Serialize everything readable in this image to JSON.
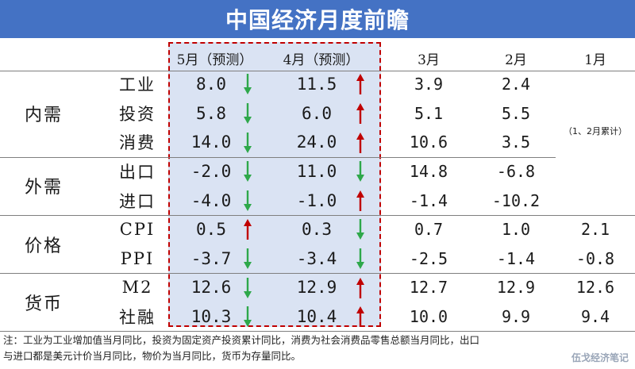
{
  "title": "中国经济月度前瞻",
  "columns": [
    "5月（预测）",
    "4月（预测）",
    "3月",
    "2月",
    "1月"
  ],
  "jan_note": "（1、2月累计）",
  "groups": [
    {
      "name": "内需",
      "rows": [
        {
          "label": "工业",
          "may": "8.0",
          "may_dir": "down",
          "apr": "11.5",
          "apr_dir": "up",
          "mar": "3.9",
          "feb": "2.4",
          "jan": ""
        },
        {
          "label": "投资",
          "may": "5.8",
          "may_dir": "down",
          "apr": "6.0",
          "apr_dir": "up",
          "mar": "5.1",
          "feb": "5.5",
          "jan": ""
        },
        {
          "label": "消费",
          "may": "14.0",
          "may_dir": "down",
          "apr": "24.0",
          "apr_dir": "up",
          "mar": "10.6",
          "feb": "3.5",
          "jan": ""
        }
      ]
    },
    {
      "name": "外需",
      "rows": [
        {
          "label": "出口",
          "may": "-2.0",
          "may_dir": "down",
          "apr": "11.0",
          "apr_dir": "down",
          "mar": "14.8",
          "feb": "-6.8",
          "jan": ""
        },
        {
          "label": "进口",
          "may": "-4.0",
          "may_dir": "down",
          "apr": "-1.0",
          "apr_dir": "up",
          "mar": "-1.4",
          "feb": "-10.2",
          "jan": ""
        }
      ]
    },
    {
      "name": "价格",
      "rows": [
        {
          "label": "CPI",
          "may": "0.5",
          "may_dir": "up",
          "apr": "0.3",
          "apr_dir": "down",
          "mar": "0.7",
          "feb": "1.0",
          "jan": "2.1"
        },
        {
          "label": "PPI",
          "may": "-3.7",
          "may_dir": "down",
          "apr": "-3.4",
          "apr_dir": "down",
          "mar": "-2.5",
          "feb": "-1.4",
          "jan": "-0.8"
        }
      ]
    },
    {
      "name": "货币",
      "rows": [
        {
          "label": "M2",
          "may": "12.6",
          "may_dir": "down",
          "apr": "12.9",
          "apr_dir": "up",
          "mar": "12.7",
          "feb": "12.9",
          "jan": "12.6"
        },
        {
          "label": "社融",
          "may": "10.3",
          "may_dir": "down",
          "apr": "10.4",
          "apr_dir": "up",
          "mar": "10.0",
          "feb": "9.9",
          "jan": "9.4"
        }
      ]
    }
  ],
  "colors": {
    "header_bg": "#4472c4",
    "highlight_bg": "#dae3f3",
    "frame": "#c00000",
    "up": "#c00000",
    "down": "#2ea84a"
  },
  "footnote_line1": "注：工业为工业增加值当月同比，投资为固定资产投资累计同比，消费为社会消费品零售总额当月同比，出口",
  "footnote_line2": "与进口都是美元计价当月同比，物价为当月同比，货币为存量同比。",
  "watermark": "伍戈经济笔记"
}
